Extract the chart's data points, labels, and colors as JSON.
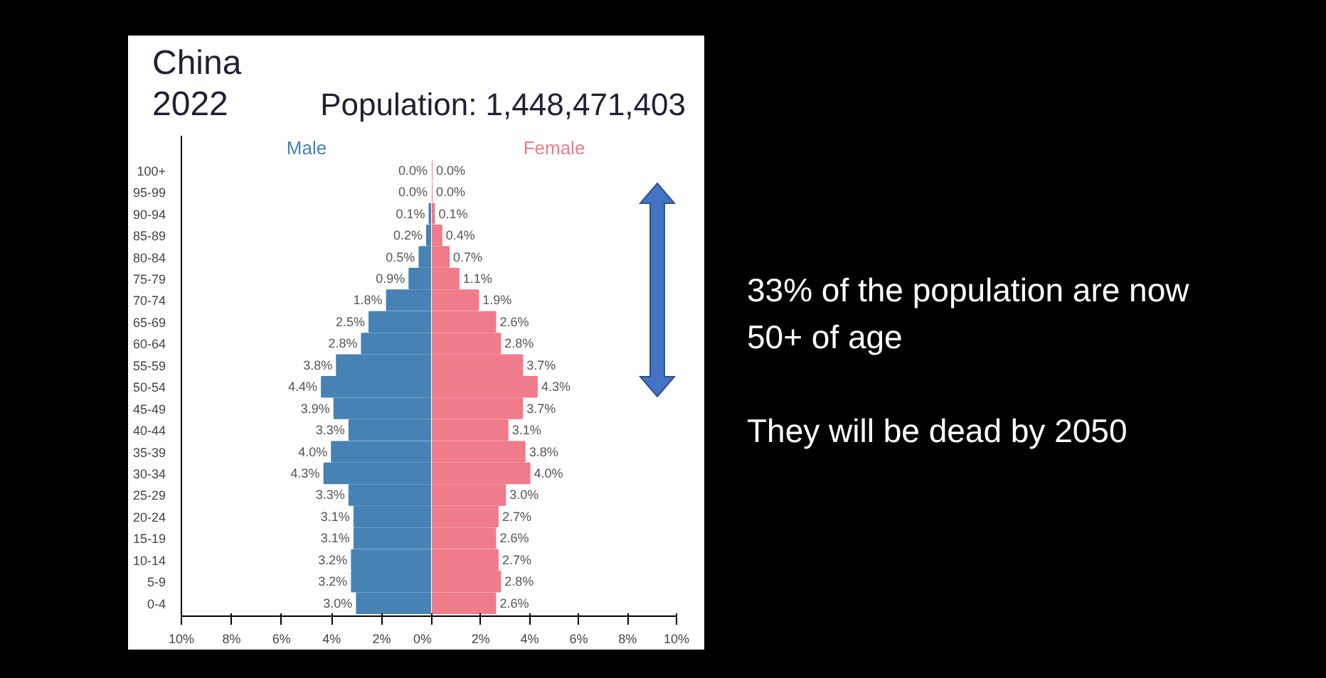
{
  "chart_data": [
    {
      "type": "bar",
      "orientation": "horizontal",
      "title": "China",
      "subtitle": "2022",
      "categories": [
        "100+",
        "95-99",
        "90-94",
        "85-89",
        "80-84",
        "75-79",
        "70-74",
        "65-69",
        "60-64",
        "55-59",
        "50-54",
        "45-49",
        "40-44",
        "35-39",
        "30-34",
        "25-29",
        "20-24",
        "15-19",
        "10-14",
        "5-9",
        "0-4"
      ],
      "series": [
        {
          "name": "Male",
          "color": "#4682b4",
          "values": [
            0.0,
            0.0,
            0.1,
            0.2,
            0.5,
            0.9,
            1.8,
            2.5,
            2.8,
            3.8,
            4.4,
            3.9,
            3.3,
            4.0,
            4.3,
            3.3,
            3.1,
            3.1,
            3.2,
            3.2,
            3.0
          ],
          "value_labels": [
            "0.0%",
            "0.0%",
            "0.1%",
            "0.2%",
            "0.5%",
            "0.9%",
            "1.8%",
            "2.5%",
            "2.8%",
            "3.8%",
            "4.4%",
            "3.9%",
            "3.3%",
            "4.0%",
            "4.3%",
            "3.3%",
            "3.1%",
            "3.1%",
            "3.2%",
            "3.2%",
            "3.0%"
          ]
        }
      ],
      "xlim": [
        10,
        0
      ],
      "xticks": [
        {
          "value": 10,
          "label": "10%"
        },
        {
          "value": 8,
          "label": "8%"
        },
        {
          "value": 6,
          "label": "6%"
        },
        {
          "value": 4,
          "label": "4%"
        },
        {
          "value": 2,
          "label": "2%"
        },
        {
          "value": 0,
          "label": "0%"
        }
      ],
      "grid": false,
      "annotations": [
        "Population: 1,448,471,403",
        "33% of the population are now 50+ of age",
        "They will be dead by 2050"
      ]
    },
    {
      "type": "bar",
      "orientation": "horizontal",
      "series": [
        {
          "name": "Female",
          "color": "#ef7b8b",
          "values": [
            0.0,
            0.0,
            0.1,
            0.4,
            0.7,
            1.1,
            1.9,
            2.6,
            2.8,
            3.7,
            4.3,
            3.7,
            3.1,
            3.8,
            4.0,
            3.0,
            2.7,
            2.6,
            2.7,
            2.8,
            2.6
          ],
          "value_labels": [
            "0.0%",
            "0.0%",
            "0.1%",
            "0.4%",
            "0.7%",
            "1.1%",
            "1.9%",
            "2.6%",
            "2.8%",
            "3.7%",
            "4.3%",
            "3.7%",
            "3.1%",
            "3.8%",
            "4.0%",
            "3.0%",
            "2.7%",
            "2.6%",
            "2.7%",
            "2.8%",
            "2.6%"
          ]
        }
      ],
      "xlim": [
        0,
        10
      ],
      "xticks": [
        {
          "value": 0,
          "label": null
        },
        {
          "value": 2,
          "label": "2%"
        },
        {
          "value": 4,
          "label": "4%"
        },
        {
          "value": 6,
          "label": "6%"
        },
        {
          "value": 8,
          "label": "8%"
        },
        {
          "value": 10,
          "label": "10%"
        }
      ],
      "grid": false,
      "tick_labels": "x"
    }
  ]
}
